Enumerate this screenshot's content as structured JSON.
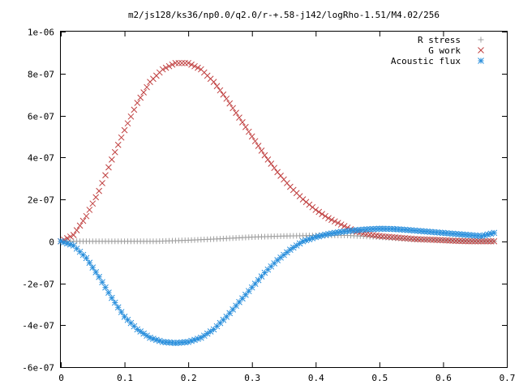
{
  "chart_data": {
    "type": "scatter",
    "title": "m2/js128/ks36/np0.0/q2.0/r-+.58-j142/logRho-1.51/M4.02/256",
    "xlabel": "",
    "ylabel": "",
    "xlim": [
      0,
      0.7
    ],
    "ylim": [
      -6e-07,
      1e-06
    ],
    "xticks": [
      "0",
      "0.1",
      "0.2",
      "0.3",
      "0.4",
      "0.5",
      "0.6",
      "0.7"
    ],
    "xtick_values": [
      0,
      0.1,
      0.2,
      0.3,
      0.4,
      0.5,
      0.6,
      0.7
    ],
    "yticks": [
      "-6e-07",
      "-4e-07",
      "-2e-07",
      "0",
      "2e-07",
      "4e-07",
      "6e-07",
      "8e-07",
      "1e-06"
    ],
    "ytick_values": [
      -6e-07,
      -4e-07,
      -2e-07,
      0,
      2e-07,
      4e-07,
      6e-07,
      8e-07,
      1e-06
    ],
    "grid": false,
    "legend_position": "top-right",
    "series": [
      {
        "name": "R stress",
        "marker": "plus",
        "color": "#a0a0a0",
        "x": [
          0,
          0.05,
          0.1,
          0.15,
          0.2,
          0.25,
          0.3,
          0.35,
          0.4,
          0.45,
          0.5,
          0.55,
          0.6,
          0.65,
          0.68
        ],
        "y": [
          0,
          0,
          0,
          0,
          5e-09,
          1.2e-08,
          2e-08,
          2.5e-08,
          2.8e-08,
          2.8e-08,
          2e-08,
          1e-08,
          5e-09,
          0,
          0
        ]
      },
      {
        "name": "G work",
        "marker": "cross",
        "color": "#c04040",
        "x": [
          0,
          0.02,
          0.04,
          0.06,
          0.08,
          0.1,
          0.12,
          0.14,
          0.16,
          0.18,
          0.2,
          0.22,
          0.24,
          0.26,
          0.28,
          0.3,
          0.32,
          0.34,
          0.36,
          0.38,
          0.4,
          0.42,
          0.44,
          0.46,
          0.48,
          0.5,
          0.52,
          0.54,
          0.56,
          0.58,
          0.6,
          0.62,
          0.64,
          0.66,
          0.68
        ],
        "y": [
          0,
          3e-08,
          1.2e-07,
          2.4e-07,
          3.9e-07,
          5.3e-07,
          6.6e-07,
          7.6e-07,
          8.2e-07,
          8.5e-07,
          8.5e-07,
          8.2e-07,
          7.6e-07,
          6.8e-07,
          5.9e-07,
          5e-07,
          4.1e-07,
          3.3e-07,
          2.6e-07,
          2e-07,
          1.5e-07,
          1.1e-07,
          8e-08,
          5e-08,
          3.5e-08,
          2.5e-08,
          2e-08,
          1.5e-08,
          1e-08,
          8e-09,
          5e-09,
          2e-09,
          0,
          0,
          0
        ]
      },
      {
        "name": "Acoustic flux",
        "marker": "star",
        "color": "#2a8fdc",
        "x": [
          0,
          0.02,
          0.04,
          0.06,
          0.08,
          0.1,
          0.12,
          0.14,
          0.16,
          0.18,
          0.2,
          0.22,
          0.24,
          0.26,
          0.28,
          0.3,
          0.32,
          0.34,
          0.36,
          0.38,
          0.4,
          0.42,
          0.44,
          0.46,
          0.48,
          0.5,
          0.52,
          0.54,
          0.56,
          0.58,
          0.6,
          0.62,
          0.64,
          0.66,
          0.68
        ],
        "y": [
          0,
          -2e-08,
          -8e-08,
          -1.7e-07,
          -2.7e-07,
          -3.6e-07,
          -4.2e-07,
          -4.6e-07,
          -4.8e-07,
          -4.85e-07,
          -4.8e-07,
          -4.6e-07,
          -4.2e-07,
          -3.6e-07,
          -2.9e-07,
          -2.2e-07,
          -1.5e-07,
          -9e-08,
          -4e-08,
          0,
          2e-08,
          3.5e-08,
          4.5e-08,
          5.2e-08,
          5.7e-08,
          6e-08,
          5.9e-08,
          5.5e-08,
          5e-08,
          4.5e-08,
          4e-08,
          3.5e-08,
          3e-08,
          2.5e-08,
          4e-08
        ]
      }
    ]
  }
}
